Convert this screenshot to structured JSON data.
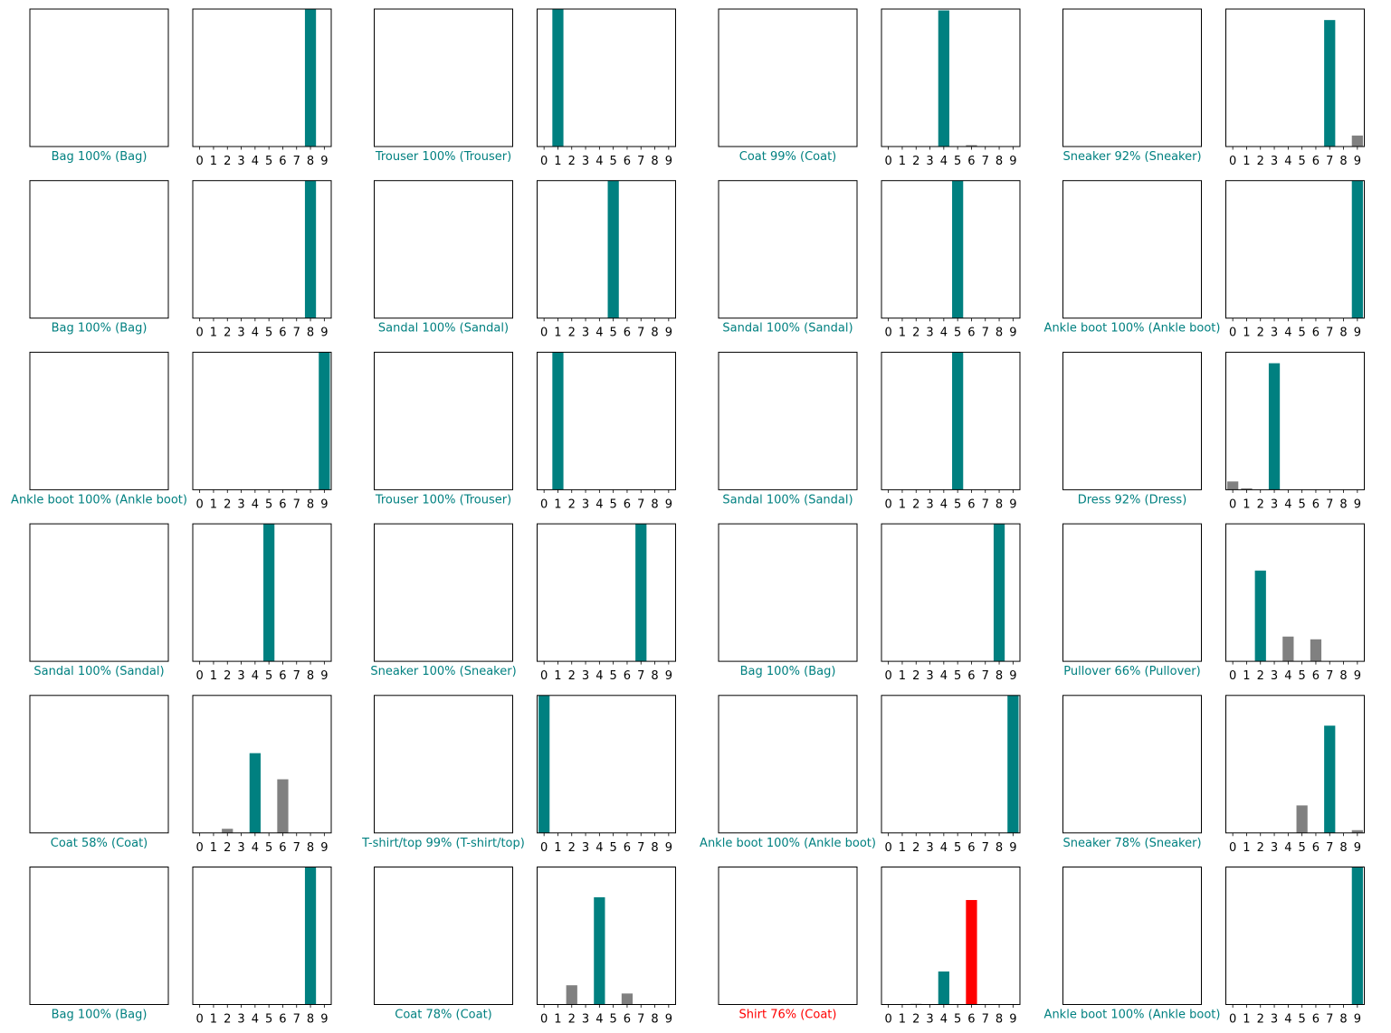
{
  "colors": {
    "correct": "#008080",
    "wrong": "#ff0000",
    "other": "#808080",
    "frame": "#000000"
  },
  "chart_data": {
    "type": "bar",
    "categories": [
      "0",
      "1",
      "2",
      "3",
      "4",
      "5",
      "6",
      "7",
      "8",
      "9"
    ],
    "ylim": [
      0,
      1
    ],
    "panels": [
      {
        "image": "bag-icon",
        "caption": "Bag 100% (Bag)",
        "correct": true,
        "predicted": 8,
        "actual": 8,
        "values": [
          0,
          0,
          0,
          0,
          0,
          0,
          0,
          0,
          1.0,
          0
        ]
      },
      {
        "image": "trouser-icon",
        "caption": "Trouser 100% (Trouser)",
        "correct": true,
        "predicted": 1,
        "actual": 1,
        "values": [
          0,
          1.0,
          0,
          0,
          0,
          0,
          0,
          0,
          0,
          0
        ]
      },
      {
        "image": "coat-icon",
        "caption": "Coat 99% (Coat)",
        "correct": true,
        "predicted": 4,
        "actual": 4,
        "values": [
          0,
          0,
          0,
          0,
          0.99,
          0,
          0.01,
          0,
          0,
          0
        ]
      },
      {
        "image": "sneaker-icon",
        "caption": "Sneaker 92% (Sneaker)",
        "correct": true,
        "predicted": 7,
        "actual": 7,
        "values": [
          0,
          0,
          0,
          0,
          0,
          0,
          0,
          0.92,
          0,
          0.08
        ]
      },
      {
        "image": "bag-icon",
        "caption": "Bag 100% (Bag)",
        "correct": true,
        "predicted": 8,
        "actual": 8,
        "values": [
          0,
          0,
          0,
          0,
          0,
          0,
          0,
          0,
          1.0,
          0
        ]
      },
      {
        "image": "sandal-icon",
        "caption": "Sandal 100% (Sandal)",
        "correct": true,
        "predicted": 5,
        "actual": 5,
        "values": [
          0,
          0,
          0,
          0,
          0,
          1.0,
          0,
          0,
          0,
          0
        ]
      },
      {
        "image": "sandal-icon",
        "caption": "Sandal 100% (Sandal)",
        "correct": true,
        "predicted": 5,
        "actual": 5,
        "values": [
          0,
          0,
          0,
          0,
          0,
          1.0,
          0,
          0,
          0,
          0
        ]
      },
      {
        "image": "ankle-boot-icon",
        "caption": "Ankle boot 100% (Ankle boot)",
        "correct": true,
        "predicted": 9,
        "actual": 9,
        "values": [
          0,
          0,
          0,
          0,
          0,
          0,
          0,
          0,
          0,
          1.0
        ]
      },
      {
        "image": "ankle-boot-icon",
        "caption": "Ankle boot 100% (Ankle boot)",
        "correct": true,
        "predicted": 9,
        "actual": 9,
        "values": [
          0,
          0,
          0,
          0,
          0,
          0,
          0,
          0,
          0,
          1.0
        ]
      },
      {
        "image": "trouser-icon",
        "caption": "Trouser 100% (Trouser)",
        "correct": true,
        "predicted": 1,
        "actual": 1,
        "values": [
          0,
          1.0,
          0,
          0,
          0,
          0,
          0,
          0,
          0,
          0
        ]
      },
      {
        "image": "sandal-icon",
        "caption": "Sandal 100% (Sandal)",
        "correct": true,
        "predicted": 5,
        "actual": 5,
        "values": [
          0,
          0,
          0,
          0,
          0,
          1.0,
          0,
          0,
          0,
          0
        ]
      },
      {
        "image": "dress-icon",
        "caption": "Dress 92% (Dress)",
        "correct": true,
        "predicted": 3,
        "actual": 3,
        "values": [
          0.06,
          0.01,
          0,
          0.92,
          0,
          0,
          0,
          0,
          0,
          0
        ]
      },
      {
        "image": "sandal-icon",
        "caption": "Sandal 100% (Sandal)",
        "correct": true,
        "predicted": 5,
        "actual": 5,
        "values": [
          0,
          0,
          0,
          0,
          0,
          1.0,
          0,
          0,
          0,
          0
        ]
      },
      {
        "image": "sneaker-icon",
        "caption": "Sneaker 100% (Sneaker)",
        "correct": true,
        "predicted": 7,
        "actual": 7,
        "values": [
          0,
          0,
          0,
          0,
          0,
          0,
          0,
          1.0,
          0,
          0
        ]
      },
      {
        "image": "bag-icon",
        "caption": "Bag 100% (Bag)",
        "correct": true,
        "predicted": 8,
        "actual": 8,
        "values": [
          0,
          0,
          0,
          0,
          0,
          0,
          0,
          0,
          1.0,
          0
        ]
      },
      {
        "image": "pullover-icon",
        "caption": "Pullover 66% (Pullover)",
        "correct": true,
        "predicted": 2,
        "actual": 2,
        "values": [
          0,
          0,
          0.66,
          0,
          0.18,
          0,
          0.16,
          0,
          0,
          0
        ]
      },
      {
        "image": "coat-icon",
        "caption": "Coat 58% (Coat)",
        "correct": true,
        "predicted": 4,
        "actual": 4,
        "values": [
          0,
          0,
          0.03,
          0,
          0.58,
          0,
          0.39,
          0,
          0,
          0
        ]
      },
      {
        "image": "tshirt-icon",
        "caption": "T-shirt/top 99% (T-shirt/top)",
        "correct": true,
        "predicted": 0,
        "actual": 0,
        "values": [
          1.0,
          0,
          0,
          0,
          0,
          0,
          0,
          0,
          0,
          0
        ]
      },
      {
        "image": "ankle-boot-icon",
        "caption": "Ankle boot 100% (Ankle boot)",
        "correct": true,
        "predicted": 9,
        "actual": 9,
        "values": [
          0,
          0,
          0,
          0,
          0,
          0,
          0,
          0,
          0,
          1.0
        ]
      },
      {
        "image": "sneaker-icon",
        "caption": "Sneaker 78% (Sneaker)",
        "correct": true,
        "predicted": 7,
        "actual": 7,
        "values": [
          0,
          0,
          0,
          0,
          0,
          0.2,
          0,
          0.78,
          0,
          0.02
        ]
      },
      {
        "image": "bag-icon",
        "caption": "Bag 100% (Bag)",
        "correct": true,
        "predicted": 8,
        "actual": 8,
        "values": [
          0,
          0,
          0,
          0,
          0,
          0,
          0,
          0,
          1.0,
          0
        ]
      },
      {
        "image": "coat-icon",
        "caption": "Coat 78% (Coat)",
        "correct": true,
        "predicted": 4,
        "actual": 4,
        "values": [
          0,
          0,
          0.14,
          0,
          0.78,
          0,
          0.08,
          0,
          0,
          0
        ]
      },
      {
        "image": "shirt-icon",
        "caption": "Shirt 76% (Coat)",
        "correct": false,
        "predicted": 6,
        "actual": 4,
        "values": [
          0,
          0,
          0.005,
          0,
          0.24,
          0,
          0.76,
          0,
          0,
          0
        ]
      },
      {
        "image": "ankle-boot-icon",
        "caption": "Ankle boot 100% (Ankle boot)",
        "correct": true,
        "predicted": 9,
        "actual": 9,
        "values": [
          0,
          0,
          0,
          0,
          0,
          0,
          0,
          0,
          0,
          1.0
        ]
      }
    ]
  }
}
